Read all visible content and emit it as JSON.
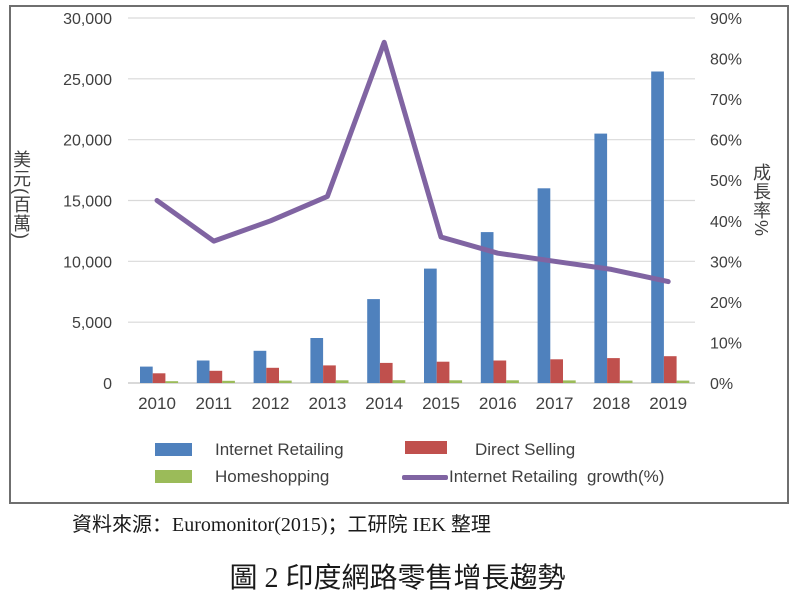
{
  "figure": {
    "source_note": "資料來源：Euromonitor(2015)；工研院 IEK 整理",
    "caption": "圖 2 印度網路零售增長趨勢"
  },
  "chart_data": {
    "type": "combo-bar-line",
    "categories": [
      "2010",
      "2011",
      "2012",
      "2013",
      "2014",
      "2015",
      "2016",
      "2017",
      "2018",
      "2019"
    ],
    "series": [
      {
        "name": "Internet Retailing",
        "type": "bar",
        "axis": "left",
        "color": "#4F81BD",
        "values": [
          1350,
          1850,
          2650,
          3700,
          6900,
          9400,
          12400,
          16000,
          20500,
          25600
        ]
      },
      {
        "name": "Direct Selling",
        "type": "bar",
        "axis": "left",
        "color": "#C0504D",
        "values": [
          800,
          1000,
          1250,
          1450,
          1650,
          1750,
          1850,
          1950,
          2050,
          2200
        ]
      },
      {
        "name": "Homeshopping",
        "type": "bar",
        "axis": "left",
        "color": "#9BBB59",
        "values": [
          150,
          180,
          200,
          220,
          230,
          220,
          220,
          210,
          200,
          200
        ]
      },
      {
        "name": "Internet Retailing  growth(%)",
        "type": "line",
        "axis": "right",
        "color": "#8064A2",
        "values": [
          45,
          35,
          40,
          46,
          84,
          36,
          32,
          30,
          28,
          25
        ]
      }
    ],
    "left_axis": {
      "title": "美元(百萬)",
      "min": 0,
      "max": 30000,
      "step": 5000,
      "ticks": [
        "0",
        "5,000",
        "10,000",
        "15,000",
        "20,000",
        "25,000",
        "30,000"
      ]
    },
    "right_axis": {
      "title": "成長率%",
      "min": 0,
      "max": 90,
      "step": 10,
      "ticks": [
        "0%",
        "10%",
        "20%",
        "30%",
        "40%",
        "50%",
        "60%",
        "70%",
        "80%",
        "90%"
      ]
    },
    "grid": "horizontal",
    "legend_position": "bottom"
  },
  "colors": {
    "gridline": "#D9D9D9",
    "zero_line": "#C2C2C2",
    "figure_border": "#6F6F6F",
    "tick_text": "#404040"
  }
}
